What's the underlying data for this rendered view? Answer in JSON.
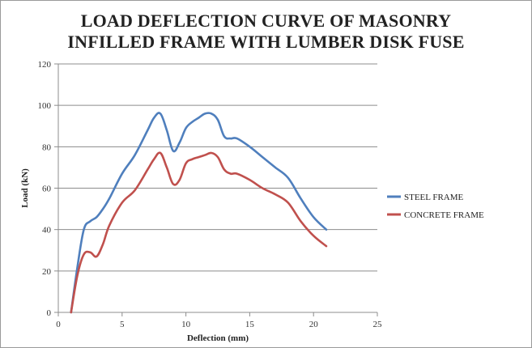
{
  "chart_data": {
    "type": "line",
    "title": [
      "LOAD DEFLECTION CURVE OF MASONRY",
      "INFILLED FRAME WITH LUMBER DISK FUSE"
    ],
    "xlabel": "Deflection (mm)",
    "ylabel": "Load (kN)",
    "xlim": [
      0,
      25
    ],
    "ylim": [
      0,
      120
    ],
    "xticks": [
      0,
      5,
      10,
      15,
      20,
      25
    ],
    "yticks": [
      0,
      20,
      40,
      60,
      80,
      100,
      120
    ],
    "grid": "horizontal",
    "legend_position": "right",
    "series": [
      {
        "name": "STEEL FRAME",
        "color": "#4f7fbd",
        "x": [
          1,
          1.5,
          2,
          2.5,
          3,
          3.5,
          4,
          5,
          6,
          7,
          7.5,
          8,
          8.5,
          9,
          9.5,
          10,
          10.5,
          11,
          11.5,
          12,
          12.5,
          13,
          13.5,
          14,
          15,
          16,
          17,
          18,
          19,
          20,
          21
        ],
        "y": [
          0,
          22,
          40,
          44,
          46,
          50,
          55,
          67,
          76,
          88,
          94,
          96,
          88,
          78,
          82,
          89,
          92,
          94,
          96,
          96,
          93,
          85,
          84,
          84,
          80,
          75,
          70,
          65,
          55,
          46,
          40
        ]
      },
      {
        "name": "CONCRETE FRAME",
        "color": "#c0504d",
        "x": [
          1,
          1.5,
          2,
          2.5,
          3,
          3.5,
          4,
          5,
          6,
          7,
          7.5,
          8,
          8.5,
          9,
          9.5,
          10,
          10.5,
          11,
          11.5,
          12,
          12.5,
          13,
          13.5,
          14,
          15,
          16,
          17,
          18,
          19,
          20,
          21
        ],
        "y": [
          0,
          18,
          28,
          29,
          27,
          33,
          42,
          53,
          59,
          69,
          74,
          77,
          70,
          62,
          64,
          72,
          74,
          75,
          76,
          77,
          75,
          69,
          67,
          67,
          64,
          60,
          57,
          53,
          44,
          37,
          32
        ]
      }
    ]
  }
}
